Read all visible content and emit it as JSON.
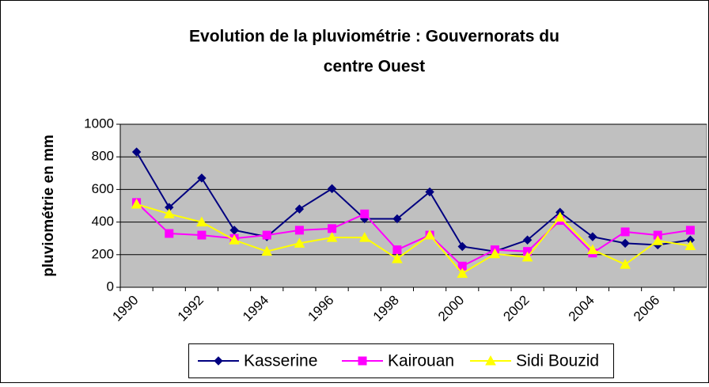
{
  "chart_data": {
    "type": "line",
    "title": [
      "Evolution de la pluviométrie : Gouvernorats du",
      "centre Ouest"
    ],
    "y_label": "pluviométrie en mm",
    "categories": [
      "1990",
      null,
      "1992",
      null,
      "1994",
      null,
      "1996",
      null,
      "1998",
      null,
      "2000",
      null,
      "2002",
      null,
      "2004",
      null,
      "2006",
      null
    ],
    "series": [
      {
        "name": "Kasserine",
        "color": "#000080",
        "marker": "diamond",
        "values": [
          830,
          490,
          670,
          350,
          310,
          480,
          605,
          420,
          420,
          585,
          250,
          220,
          290,
          460,
          310,
          270,
          260,
          290
        ]
      },
      {
        "name": "Kairouan",
        "color": "#ff00ff",
        "marker": "square",
        "values": [
          520,
          330,
          320,
          300,
          320,
          350,
          360,
          450,
          230,
          320,
          130,
          230,
          220,
          410,
          210,
          340,
          320,
          350
        ]
      },
      {
        "name": "Sidi Bouzid",
        "color": "#ffff00",
        "marker": "triangle",
        "values": [
          510,
          450,
          400,
          290,
          220,
          270,
          305,
          305,
          175,
          320,
          85,
          205,
          185,
          430,
          230,
          140,
          285,
          255
        ]
      }
    ],
    "ylim": [
      0,
      1000
    ],
    "yticks": [
      0,
      200,
      400,
      600,
      800,
      1000
    ],
    "grid": true,
    "legend": "bottom"
  }
}
